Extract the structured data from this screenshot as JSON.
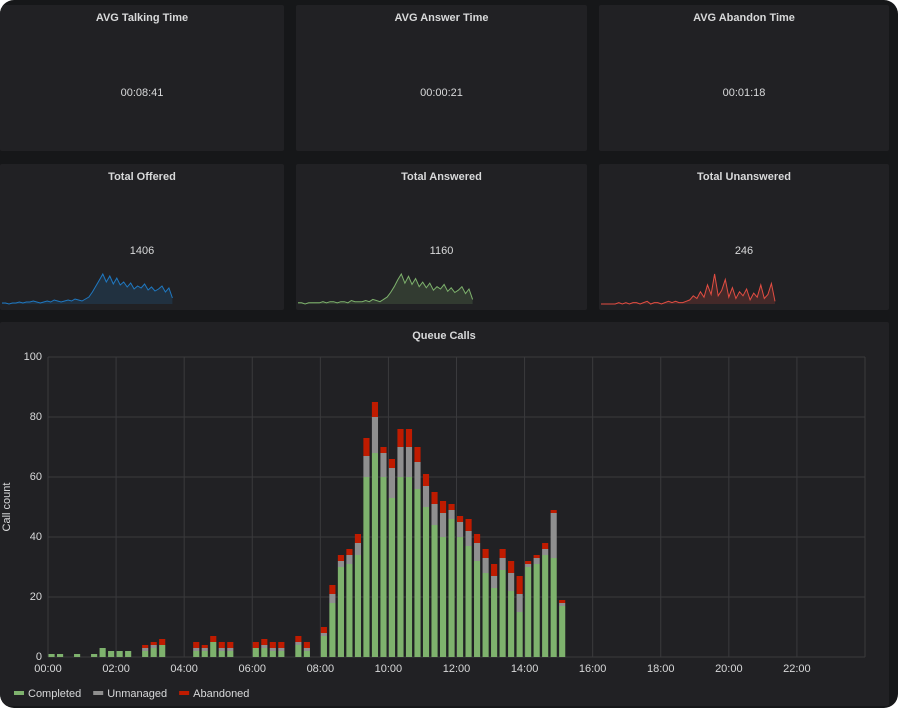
{
  "stats": [
    {
      "title": "AVG Talking Time",
      "value": "00:08:41"
    },
    {
      "title": "AVG Answer Time",
      "value": "00:00:21"
    },
    {
      "title": "AVG Abandon Time",
      "value": "00:01:18"
    }
  ],
  "totals": [
    {
      "title": "Total Offered",
      "value": 1406,
      "color": "#1f78c1",
      "sparkline": [
        1,
        1,
        0,
        1,
        1,
        2,
        1,
        2,
        2,
        3,
        2,
        1,
        2,
        3,
        2,
        4,
        3,
        2,
        3,
        4,
        3,
        5,
        4,
        3,
        5,
        7,
        12,
        18,
        24,
        30,
        22,
        28,
        20,
        26,
        19,
        22,
        17,
        21,
        15,
        18,
        16,
        20,
        14,
        17,
        13,
        15,
        18,
        12,
        16,
        6
      ]
    },
    {
      "title": "Total Answered",
      "value": 1160,
      "color": "#7eb26d",
      "sparkline": [
        1,
        1,
        0,
        1,
        1,
        1,
        1,
        2,
        1,
        2,
        2,
        1,
        2,
        2,
        1,
        3,
        2,
        2,
        2,
        3,
        2,
        4,
        3,
        2,
        4,
        6,
        10,
        15,
        21,
        26,
        18,
        24,
        17,
        22,
        15,
        19,
        14,
        18,
        12,
        15,
        13,
        17,
        11,
        14,
        10,
        12,
        15,
        9,
        13,
        4
      ]
    },
    {
      "title": "Total Unanswered",
      "value": 246,
      "color": "#e24d42",
      "sparkline": [
        0,
        0,
        0,
        0,
        0,
        1,
        0,
        1,
        0,
        1,
        1,
        0,
        1,
        2,
        0,
        1,
        1,
        0,
        1,
        2,
        1,
        2,
        1,
        1,
        2,
        3,
        6,
        4,
        9,
        5,
        14,
        7,
        22,
        6,
        10,
        18,
        5,
        12,
        4,
        9,
        6,
        11,
        3,
        8,
        5,
        14,
        4,
        7,
        15,
        2
      ]
    }
  ],
  "chart_data": {
    "type": "stacked-bar",
    "title": "Queue Calls",
    "y_label": "Call count",
    "x": [
      0,
      0.25,
      0.5,
      0.75,
      1,
      1.25,
      1.5,
      1.75,
      2,
      2.25,
      2.5,
      2.75,
      3,
      3.25,
      3.5,
      3.75,
      4,
      4.25,
      4.5,
      4.75,
      5,
      5.25,
      5.5,
      5.75,
      6,
      6.25,
      6.5,
      6.75,
      7,
      7.25,
      7.5,
      7.75,
      8,
      8.25,
      8.5,
      8.75,
      9,
      9.25,
      9.5,
      9.75,
      10,
      10.25,
      10.5,
      10.75,
      11,
      11.25,
      11.5,
      11.75,
      12,
      12.25,
      12.5,
      12.75,
      13,
      13.25,
      13.5,
      13.75,
      14,
      14.25,
      14.5,
      14.75,
      15
    ],
    "series": [
      {
        "name": "Completed",
        "color": "#7eb26d",
        "values": [
          1,
          1,
          0,
          1,
          0,
          1,
          3,
          2,
          2,
          2,
          0,
          2,
          3,
          4,
          0,
          0,
          0,
          2,
          2,
          5,
          2,
          2,
          0,
          0,
          3,
          3,
          2,
          2,
          0,
          4,
          2,
          0,
          7,
          18,
          30,
          31,
          34,
          60,
          68,
          60,
          53,
          60,
          60,
          56,
          50,
          44,
          40,
          46,
          40,
          37,
          32,
          28,
          23,
          29,
          22,
          15,
          30,
          31,
          34,
          33,
          17
        ]
      },
      {
        "name": "Unmanaged",
        "color": "#8f8f8f",
        "values": [
          0,
          0,
          0,
          0,
          0,
          0,
          0,
          0,
          0,
          0,
          0,
          1,
          1,
          0,
          0,
          0,
          0,
          1,
          1,
          0,
          1,
          1,
          0,
          0,
          0,
          1,
          1,
          1,
          0,
          1,
          1,
          0,
          1,
          3,
          2,
          3,
          4,
          7,
          12,
          8,
          10,
          10,
          10,
          9,
          7,
          7,
          8,
          3,
          5,
          5,
          6,
          5,
          4,
          4,
          6,
          6,
          1,
          2,
          2,
          15,
          1
        ]
      },
      {
        "name": "Abandoned",
        "color": "#bf1b00",
        "values": [
          0,
          0,
          0,
          0,
          0,
          0,
          0,
          0,
          0,
          0,
          0,
          1,
          1,
          2,
          0,
          0,
          0,
          2,
          1,
          2,
          2,
          2,
          0,
          0,
          2,
          2,
          2,
          2,
          0,
          2,
          2,
          0,
          2,
          3,
          2,
          2,
          3,
          6,
          5,
          2,
          3,
          6,
          6,
          5,
          4,
          4,
          4,
          2,
          2,
          4,
          3,
          3,
          4,
          3,
          4,
          6,
          1,
          1,
          2,
          1,
          1
        ]
      }
    ],
    "xlim": [
      0,
      24
    ],
    "xticks": [
      {
        "value": 0,
        "label": "00:00"
      },
      {
        "value": 2,
        "label": "02:00"
      },
      {
        "value": 4,
        "label": "04:00"
      },
      {
        "value": 6,
        "label": "06:00"
      },
      {
        "value": 8,
        "label": "08:00"
      },
      {
        "value": 10,
        "label": "10:00"
      },
      {
        "value": 12,
        "label": "12:00"
      },
      {
        "value": 14,
        "label": "14:00"
      },
      {
        "value": 16,
        "label": "16:00"
      },
      {
        "value": 18,
        "label": "18:00"
      },
      {
        "value": 20,
        "label": "20:00"
      },
      {
        "value": 22,
        "label": "22:00"
      }
    ],
    "ylim": [
      0,
      100
    ],
    "yticks": [
      0,
      20,
      40,
      60,
      80,
      100
    ],
    "grid": true,
    "legend": "bottom-left"
  }
}
